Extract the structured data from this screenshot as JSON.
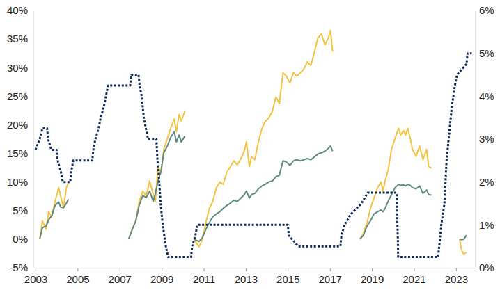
{
  "chart_data": {
    "type": "line",
    "grid": false,
    "xlim": [
      2002.9,
      2023.9
    ],
    "xticks": [
      2003,
      2005,
      2007,
      2009,
      2011,
      2013,
      2015,
      2017,
      2019,
      2021,
      2023
    ],
    "ylim": [
      -5,
      40
    ],
    "yticks": [
      {
        "value": -5,
        "label": "-5%"
      },
      {
        "value": 0,
        "label": "0%"
      },
      {
        "value": 5,
        "label": "5%"
      },
      {
        "value": 10,
        "label": "10%"
      },
      {
        "value": 15,
        "label": "15%"
      },
      {
        "value": 20,
        "label": "20%"
      },
      {
        "value": 25,
        "label": "25%"
      },
      {
        "value": 30,
        "label": "30%"
      },
      {
        "value": 35,
        "label": "35%"
      },
      {
        "value": 40,
        "label": "40%"
      }
    ],
    "y2lim": [
      0,
      6
    ],
    "y2ticks": [
      {
        "value": 0,
        "label": "0%"
      },
      {
        "value": 1,
        "label": "1%"
      },
      {
        "value": 2,
        "label": "2%"
      },
      {
        "value": 3,
        "label": "3%"
      },
      {
        "value": 4,
        "label": "4%"
      },
      {
        "value": 5,
        "label": "5%"
      },
      {
        "value": 6,
        "label": "6%"
      }
    ],
    "series": [
      {
        "color": "#f4c343",
        "line_style": "solid",
        "x": [
          2003.2,
          2003.33,
          2003.5,
          2003.63,
          2003.77,
          2003.93,
          2004.1,
          2004.2,
          2004.33,
          2004.47,
          2004.57,
          2006,
          2007.43,
          2007.6,
          2007.77,
          2007.93,
          2008.1,
          2008.27,
          2008.43,
          2008.6,
          2008.7,
          2008.83,
          2008.97,
          2009.1,
          2009.27,
          2009.43,
          2009.6,
          2009.7,
          2009.83,
          2009.93,
          2010.1,
          2010.3,
          2010.53,
          2010.77,
          2010.93,
          2011.1,
          2011.27,
          2011.43,
          2011.6,
          2011.77,
          2011.93,
          2012.1,
          2012.27,
          2012.43,
          2012.6,
          2012.77,
          2012.93,
          2013.03,
          2013.17,
          2013.27,
          2013.43,
          2013.6,
          2013.77,
          2013.93,
          2014.1,
          2014.27,
          2014.43,
          2014.6,
          2014.77,
          2014.93,
          2015.1,
          2015.27,
          2015.43,
          2015.6,
          2015.77,
          2015.93,
          2016.1,
          2016.27,
          2016.43,
          2016.6,
          2016.77,
          2016.93,
          2017.03,
          2017.13,
          2018.0,
          2018.43,
          2018.6,
          2018.77,
          2018.93,
          2019.1,
          2019.27,
          2019.43,
          2019.53,
          2019.63,
          2019.77,
          2019.93,
          2020.1,
          2020.27,
          2020.37,
          2020.5,
          2020.6,
          2020.7,
          2020.83,
          2020.93,
          2021.1,
          2021.27,
          2021.43,
          2021.6,
          2021.7,
          2021.83,
          2022.5,
          2023.17,
          2023.27,
          2023.37,
          2023.5
        ],
        "values": [
          0,
          3.2,
          1.7,
          4.8,
          3.9,
          6.6,
          9,
          7.5,
          5.5,
          9,
          10,
          null,
          0,
          1.7,
          3.2,
          6.6,
          8.4,
          7.6,
          10.2,
          7.8,
          6.6,
          12.7,
          11.5,
          15.7,
          17.6,
          19.4,
          21,
          18.8,
          21.8,
          20.6,
          22.4,
          null,
          0,
          -1.3,
          -0.1,
          2.9,
          5.4,
          6.6,
          9,
          10,
          9.6,
          11.7,
          12.7,
          13.7,
          13,
          14.1,
          15.4,
          17,
          12.7,
          14.5,
          13.9,
          17,
          19.4,
          20.6,
          21.2,
          22.4,
          24.9,
          23.7,
          29.1,
          28.5,
          27.3,
          29.1,
          28.5,
          29.1,
          29.8,
          31,
          30.4,
          32.8,
          35.2,
          35.9,
          34,
          35.2,
          36.5,
          32.8,
          null,
          0,
          1.1,
          2.9,
          5.4,
          7.2,
          9,
          10,
          8.4,
          10.2,
          12,
          15.7,
          17.6,
          19.4,
          18.2,
          19,
          18.2,
          19.4,
          17.6,
          15.7,
          14.5,
          16.3,
          13.9,
          15.7,
          12.7,
          12.4,
          null,
          0,
          -2,
          -2.6,
          -2.3
        ]
      },
      {
        "color": "#5e8a80",
        "line_style": "solid",
        "x": [
          2003.2,
          2003.33,
          2003.5,
          2003.63,
          2003.77,
          2003.93,
          2004.1,
          2004.2,
          2004.33,
          2004.47,
          2004.57,
          2006,
          2007.43,
          2007.6,
          2007.77,
          2007.93,
          2008.1,
          2008.27,
          2008.43,
          2008.6,
          2008.7,
          2008.83,
          2008.97,
          2009.1,
          2009.27,
          2009.43,
          2009.6,
          2009.7,
          2009.83,
          2009.93,
          2010.1,
          2010.3,
          2010.53,
          2010.77,
          2010.93,
          2011.1,
          2011.27,
          2011.43,
          2011.6,
          2011.77,
          2011.93,
          2012.1,
          2012.27,
          2012.43,
          2012.6,
          2012.77,
          2012.93,
          2013.03,
          2013.17,
          2013.27,
          2013.43,
          2013.6,
          2013.77,
          2013.93,
          2014.1,
          2014.27,
          2014.43,
          2014.6,
          2014.77,
          2014.93,
          2015.1,
          2015.27,
          2015.43,
          2015.6,
          2015.77,
          2015.93,
          2016.1,
          2016.27,
          2016.43,
          2016.6,
          2016.77,
          2016.93,
          2017.03,
          2017.13,
          2018.0,
          2018.43,
          2018.6,
          2018.77,
          2018.93,
          2019.1,
          2019.27,
          2019.43,
          2019.53,
          2019.63,
          2019.77,
          2019.93,
          2020.1,
          2020.27,
          2020.37,
          2020.5,
          2020.6,
          2020.7,
          2020.83,
          2020.93,
          2021.1,
          2021.27,
          2021.43,
          2021.6,
          2021.7,
          2021.83,
          2022.5,
          2023.17,
          2023.27,
          2023.37,
          2023.5
        ],
        "values": [
          0,
          2,
          2.3,
          3.4,
          4.1,
          5.9,
          6.5,
          5.6,
          5.5,
          6.3,
          7,
          null,
          0,
          1.7,
          3.2,
          5.9,
          7.6,
          7.3,
          8.4,
          6.6,
          8,
          10.2,
          12,
          15.1,
          16.3,
          17.8,
          18.8,
          17,
          18.2,
          17,
          18,
          null,
          0,
          -0.4,
          0.2,
          1.7,
          2.9,
          3.9,
          4.4,
          4.8,
          5.4,
          5.9,
          6.3,
          6.8,
          6.6,
          7.2,
          7.8,
          8.4,
          7.2,
          7.8,
          8,
          8.8,
          9.3,
          9.6,
          10,
          10.2,
          10.9,
          11.2,
          13.7,
          13.5,
          12.9,
          13.7,
          13.9,
          13.7,
          13.9,
          14.1,
          13.9,
          14.4,
          14.9,
          15.1,
          15.4,
          15.9,
          16.3,
          15.4,
          null,
          0,
          0.7,
          2.3,
          3.2,
          4.4,
          4.8,
          5.1,
          4.8,
          5.4,
          6.6,
          7.8,
          9,
          9.6,
          9.4,
          9.5,
          9.3,
          9.6,
          9.4,
          9,
          8.8,
          9.3,
          8,
          8.6,
          7.8,
          7.7,
          null,
          0,
          -0.1,
          0,
          0.7
        ]
      },
      {
        "color": "#0d2a57",
        "line_style": "dotted",
        "axis": "y2",
        "x": [
          2003.0,
          2003.2,
          2003.33,
          2003.55,
          2003.6,
          2003.75,
          2004.0,
          2004.05,
          2004.2,
          2004.3,
          2004.65,
          2004.7,
          2004.8,
          2005.7,
          2005.75,
          2005.85,
          2006.0,
          2006.1,
          2006.25,
          2006.35,
          2006.45,
          2007.5,
          2007.55,
          2007.9,
          2007.95,
          2008.05,
          2008.15,
          2008.35,
          2008.75,
          2008.8,
          2008.85,
          2008.95,
          2009.05,
          2009.2,
          2009.3,
          2010.4,
          2010.45,
          2010.6,
          2010.7,
          2015.0,
          2015.05,
          2015.5,
          2017.5,
          2017.55,
          2017.7,
          2018.0,
          2018.5,
          2018.8,
          2020.17,
          2020.2,
          2020.23,
          2020.25,
          2022.15,
          2022.2,
          2022.3,
          2022.45,
          2022.55,
          2022.7,
          2022.8,
          2022.95,
          2023.05,
          2023.5,
          2023.55,
          2023.75
        ],
        "values": [
          2.75,
          3,
          3.25,
          3.25,
          3,
          2.75,
          2.75,
          2.5,
          2.25,
          2,
          2,
          2.25,
          2.5,
          2.5,
          2.75,
          3,
          3.25,
          3.5,
          3.75,
          4,
          4.25,
          4.25,
          4.5,
          4.5,
          4.25,
          4,
          3.5,
          3,
          3,
          2.5,
          2.25,
          1.5,
          1,
          0.5,
          0.25,
          0.25,
          0.5,
          0.75,
          1,
          1,
          0.75,
          0.5,
          0.5,
          0.75,
          1,
          1.25,
          1.5,
          1.75,
          1.75,
          1.25,
          0.75,
          0.25,
          0.25,
          0.5,
          1,
          1.5,
          2.5,
          3.25,
          3.75,
          4.25,
          4.5,
          4.75,
          5,
          5
        ]
      }
    ]
  }
}
